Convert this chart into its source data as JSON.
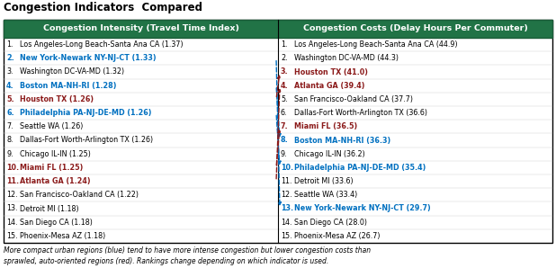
{
  "title": "Congestion Indicators  Compared",
  "header_left": "Congestion Intensity (Travel Time Index)",
  "header_right": "Congestion Costs (Delay Hours Per Commuter)",
  "header_bg": "#217346",
  "header_border": "#1A5C38",
  "header_text_color": "#FFFFFF",
  "left_items": [
    {
      "rank": 1,
      "text": "Los Angeles-Long Beach-Santa Ana CA (1.37)",
      "color": "black",
      "bold": false
    },
    {
      "rank": 2,
      "text": "New York-Newark NY-NJ-CT (1.33)",
      "color": "#0070C0",
      "bold": true
    },
    {
      "rank": 3,
      "text": "Washington DC-VA-MD (1.32)",
      "color": "black",
      "bold": false
    },
    {
      "rank": 4,
      "text": "Boston MA-NH-RI (1.28)",
      "color": "#0070C0",
      "bold": true
    },
    {
      "rank": 5,
      "text": "Houston TX (1.26)",
      "color": "#8B1A1A",
      "bold": true
    },
    {
      "rank": 6,
      "text": "Philadelphia PA-NJ-DE-MD (1.26)",
      "color": "#0070C0",
      "bold": true
    },
    {
      "rank": 7,
      "text": "Seattle WA (1.26)",
      "color": "black",
      "bold": false
    },
    {
      "rank": 8,
      "text": "Dallas-Fort Worth-Arlington TX (1.26)",
      "color": "black",
      "bold": false
    },
    {
      "rank": 9,
      "text": "Chicago IL-IN (1.25)",
      "color": "black",
      "bold": false
    },
    {
      "rank": 10,
      "text": "Miami FL (1.25)",
      "color": "#8B1A1A",
      "bold": true
    },
    {
      "rank": 11,
      "text": "Atlanta GA (1.24)",
      "color": "#8B1A1A",
      "bold": true
    },
    {
      "rank": 12,
      "text": "San Francisco-Oakland CA (1.22)",
      "color": "black",
      "bold": false
    },
    {
      "rank": 13,
      "text": "Detroit MI (1.18)",
      "color": "black",
      "bold": false
    },
    {
      "rank": 14,
      "text": "San Diego CA (1.18)",
      "color": "black",
      "bold": false
    },
    {
      "rank": 15,
      "text": "Phoenix-Mesa AZ (1.18)",
      "color": "black",
      "bold": false
    }
  ],
  "right_items": [
    {
      "rank": 1,
      "text": "Los Angeles-Long Beach-Santa Ana CA (44.9)",
      "color": "black",
      "bold": false
    },
    {
      "rank": 2,
      "text": "Washington DC-VA-MD (44.3)",
      "color": "black",
      "bold": false
    },
    {
      "rank": 3,
      "text": "Houston TX (41.0)",
      "color": "#8B1A1A",
      "bold": true
    },
    {
      "rank": 4,
      "text": "Atlanta GA (39.4)",
      "color": "#8B1A1A",
      "bold": true
    },
    {
      "rank": 5,
      "text": "San Francisco-Oakland CA (37.7)",
      "color": "black",
      "bold": false
    },
    {
      "rank": 6,
      "text": "Dallas-Fort Worth-Arlington TX (36.6)",
      "color": "black",
      "bold": false
    },
    {
      "rank": 7,
      "text": "Miami FL (36.5)",
      "color": "#8B1A1A",
      "bold": true
    },
    {
      "rank": 8,
      "text": "Boston MA-NH-RI (36.3)",
      "color": "#0070C0",
      "bold": true
    },
    {
      "rank": 9,
      "text": "Chicago IL-IN (36.2)",
      "color": "black",
      "bold": false
    },
    {
      "rank": 10,
      "text": "Philadelphia PA-NJ-DE-MD (35.4)",
      "color": "#0070C0",
      "bold": true
    },
    {
      "rank": 11,
      "text": "Detroit MI (33.6)",
      "color": "black",
      "bold": false
    },
    {
      "rank": 12,
      "text": "Seattle WA (33.4)",
      "color": "black",
      "bold": false
    },
    {
      "rank": 13,
      "text": "New York-Newark NY-NJ-CT (29.7)",
      "color": "#0070C0",
      "bold": true
    },
    {
      "rank": 14,
      "text": "San Diego CA (28.0)",
      "color": "black",
      "bold": false
    },
    {
      "rank": 15,
      "text": "Phoenix-Mesa AZ (26.7)",
      "color": "black",
      "bold": false
    }
  ],
  "arrows": [
    {
      "from_rank": 2,
      "to_rank": 13,
      "color": "#0070C0"
    },
    {
      "from_rank": 4,
      "to_rank": 8,
      "color": "#0070C0"
    },
    {
      "from_rank": 6,
      "to_rank": 10,
      "color": "#0070C0"
    },
    {
      "from_rank": 5,
      "to_rank": 3,
      "color": "#8B1A1A"
    },
    {
      "from_rank": 10,
      "to_rank": 7,
      "color": "#8B1A1A"
    },
    {
      "from_rank": 11,
      "to_rank": 4,
      "color": "#8B1A1A"
    }
  ],
  "caption_line1": "More compact urban regions (blue) tend to have more intense congestion but lower congestion costs than",
  "caption_line2": "sprawled, auto-oriented regions (red). Rankings change depending on which indicator is used.",
  "fig_width": 6.18,
  "fig_height": 3.08,
  "dpi": 100
}
